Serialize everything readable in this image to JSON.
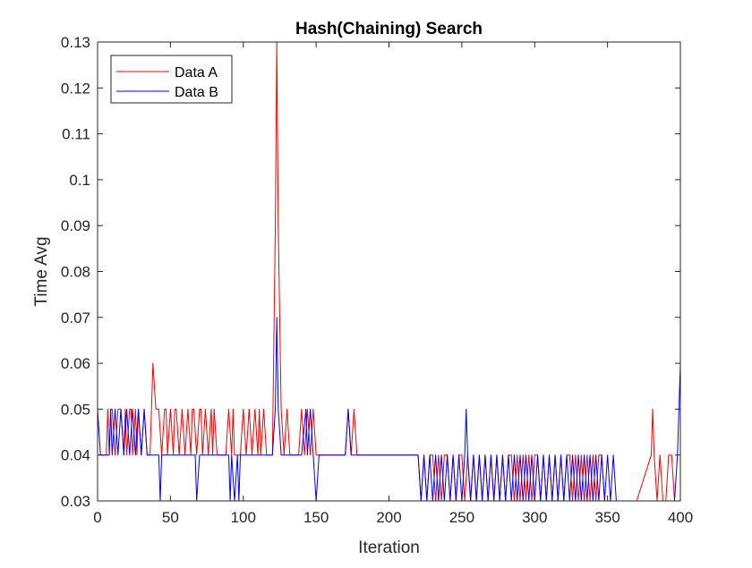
{
  "chart_data": {
    "type": "line",
    "title": "Hash(Chaining) Search",
    "xlabel": "Iteration",
    "ylabel": "Time Avg",
    "xlim": [
      0,
      400
    ],
    "ylim": [
      0.03,
      0.13
    ],
    "xticks": [
      0,
      50,
      100,
      150,
      200,
      250,
      300,
      350,
      400
    ],
    "yticks": [
      0.03,
      0.04,
      0.05,
      0.06,
      0.07,
      0.08,
      0.09,
      0.1,
      0.11,
      0.12,
      0.13
    ],
    "ytick_labels": [
      "0.03",
      "0.04",
      "0.05",
      "0.06",
      "0.07",
      "0.08",
      "0.09",
      "0.1",
      "0.11",
      "0.12",
      "0.13"
    ],
    "grid": false,
    "legend_position": "top-left",
    "colors": {
      "Data A": "#ff0000",
      "Data B": "#0000ff"
    },
    "series": [
      {
        "name": "Data A",
        "x": [
          0,
          6,
          7,
          8,
          9,
          10,
          12,
          14,
          16,
          18,
          19,
          20,
          22,
          23,
          24,
          26,
          27,
          28,
          30,
          32,
          34,
          36,
          37,
          38,
          40,
          42,
          44,
          46,
          47,
          48,
          50,
          52,
          53,
          54,
          56,
          58,
          60,
          62,
          64,
          65,
          66,
          68,
          70,
          71,
          72,
          74,
          76,
          78,
          79,
          80,
          82,
          84,
          86,
          88,
          90,
          92,
          93,
          94,
          96,
          98,
          100,
          102,
          104,
          106,
          108,
          110,
          111,
          112,
          114,
          116,
          118,
          120,
          122,
          123,
          124,
          126,
          128,
          130,
          132,
          134,
          136,
          138,
          140,
          142,
          144,
          146,
          148,
          150,
          160,
          170,
          172,
          174,
          176,
          178,
          180,
          182,
          184,
          186,
          188,
          190,
          192,
          194,
          196,
          200,
          210,
          220,
          222,
          224,
          226,
          228,
          230,
          232,
          234,
          236,
          238,
          240,
          242,
          244,
          246,
          248,
          250,
          252,
          254,
          256,
          258,
          260,
          262,
          264,
          266,
          268,
          270,
          272,
          274,
          276,
          278,
          280,
          282,
          284,
          286,
          288,
          290,
          292,
          294,
          296,
          298,
          300,
          302,
          304,
          306,
          308,
          310,
          312,
          314,
          316,
          318,
          320,
          322,
          324,
          326,
          328,
          330,
          332,
          334,
          336,
          338,
          340,
          342,
          344,
          346,
          348,
          350,
          360,
          370,
          380,
          381,
          382,
          384,
          386,
          388,
          390,
          392,
          394,
          396,
          398,
          400
        ],
        "y": [
          0.04,
          0.04,
          0.05,
          0.04,
          0.05,
          0.05,
          0.04,
          0.05,
          0.05,
          0.04,
          0.05,
          0.04,
          0.05,
          0.05,
          0.04,
          0.05,
          0.04,
          0.05,
          0.04,
          0.05,
          0.04,
          0.04,
          0.05,
          0.06,
          0.05,
          0.05,
          0.04,
          0.05,
          0.05,
          0.04,
          0.05,
          0.04,
          0.05,
          0.05,
          0.04,
          0.05,
          0.04,
          0.05,
          0.04,
          0.05,
          0.05,
          0.04,
          0.05,
          0.05,
          0.04,
          0.05,
          0.04,
          0.05,
          0.04,
          0.05,
          0.04,
          0.04,
          0.04,
          0.04,
          0.05,
          0.04,
          0.05,
          0.04,
          0.04,
          0.04,
          0.05,
          0.04,
          0.05,
          0.04,
          0.05,
          0.04,
          0.05,
          0.04,
          0.05,
          0.04,
          0.04,
          0.04,
          0.09,
          0.13,
          0.09,
          0.05,
          0.04,
          0.05,
          0.04,
          0.04,
          0.04,
          0.04,
          0.05,
          0.04,
          0.05,
          0.04,
          0.05,
          0.04,
          0.04,
          0.04,
          0.05,
          0.04,
          0.05,
          0.04,
          0.04,
          0.04,
          0.04,
          0.04,
          0.04,
          0.04,
          0.04,
          0.04,
          0.04,
          0.04,
          0.04,
          0.04,
          0.03,
          0.04,
          0.03,
          0.04,
          0.04,
          0.03,
          0.04,
          0.03,
          0.04,
          0.04,
          0.03,
          0.04,
          0.03,
          0.04,
          0.04,
          0.03,
          0.04,
          0.03,
          0.04,
          0.03,
          0.04,
          0.03,
          0.04,
          0.03,
          0.04,
          0.03,
          0.04,
          0.03,
          0.04,
          0.03,
          0.04,
          0.04,
          0.03,
          0.04,
          0.03,
          0.04,
          0.03,
          0.04,
          0.03,
          0.04,
          0.04,
          0.03,
          0.04,
          0.03,
          0.04,
          0.03,
          0.04,
          0.03,
          0.04,
          0.03,
          0.04,
          0.04,
          0.03,
          0.04,
          0.03,
          0.04,
          0.03,
          0.04,
          0.03,
          0.04,
          0.03,
          0.04,
          0.04,
          0.03,
          0.03,
          0.03,
          0.03,
          0.04,
          0.05,
          0.04,
          0.03,
          0.04,
          0.03,
          0.03,
          0.04,
          0.04,
          0.03,
          0.03,
          0.03
        ]
      },
      {
        "name": "Data B",
        "x": [
          0,
          2,
          4,
          6,
          8,
          9,
          10,
          12,
          14,
          16,
          18,
          20,
          22,
          24,
          26,
          28,
          30,
          32,
          34,
          36,
          38,
          40,
          42,
          43,
          44,
          46,
          48,
          50,
          60,
          67,
          68,
          70,
          80,
          90,
          91,
          92,
          94,
          96,
          97,
          98,
          100,
          110,
          120,
          122,
          123,
          124,
          126,
          128,
          130,
          140,
          143,
          144,
          146,
          148,
          150,
          152,
          154,
          160,
          170,
          172,
          174,
          180,
          190,
          200,
          210,
          218,
          220,
          222,
          224,
          226,
          228,
          230,
          232,
          234,
          236,
          238,
          240,
          242,
          244,
          246,
          248,
          250,
          252,
          253,
          254,
          256,
          258,
          260,
          262,
          264,
          266,
          268,
          270,
          272,
          274,
          276,
          278,
          280,
          282,
          284,
          286,
          288,
          290,
          292,
          294,
          296,
          298,
          300,
          302,
          304,
          306,
          308,
          310,
          312,
          314,
          316,
          318,
          320,
          322,
          324,
          326,
          328,
          330,
          332,
          334,
          336,
          338,
          340,
          342,
          344,
          346,
          348,
          350,
          352,
          354,
          356,
          358,
          360,
          370,
          380,
          390,
          396,
          398,
          400
        ],
        "y": [
          0.05,
          0.04,
          0.04,
          0.04,
          0.04,
          0.05,
          0.04,
          0.05,
          0.04,
          0.05,
          0.04,
          0.05,
          0.04,
          0.05,
          0.04,
          0.05,
          0.04,
          0.05,
          0.04,
          0.04,
          0.04,
          0.04,
          0.04,
          0.03,
          0.04,
          0.04,
          0.04,
          0.04,
          0.04,
          0.04,
          0.03,
          0.04,
          0.04,
          0.04,
          0.03,
          0.04,
          0.03,
          0.04,
          0.03,
          0.04,
          0.04,
          0.04,
          0.04,
          0.05,
          0.07,
          0.05,
          0.04,
          0.04,
          0.04,
          0.04,
          0.05,
          0.04,
          0.05,
          0.04,
          0.03,
          0.04,
          0.04,
          0.04,
          0.04,
          0.05,
          0.04,
          0.04,
          0.04,
          0.04,
          0.04,
          0.04,
          0.04,
          0.03,
          0.04,
          0.03,
          0.04,
          0.03,
          0.04,
          0.03,
          0.04,
          0.03,
          0.04,
          0.03,
          0.04,
          0.03,
          0.04,
          0.03,
          0.04,
          0.05,
          0.04,
          0.03,
          0.04,
          0.03,
          0.04,
          0.03,
          0.04,
          0.03,
          0.04,
          0.03,
          0.04,
          0.03,
          0.04,
          0.03,
          0.04,
          0.03,
          0.04,
          0.03,
          0.04,
          0.03,
          0.04,
          0.03,
          0.04,
          0.03,
          0.04,
          0.03,
          0.04,
          0.03,
          0.04,
          0.03,
          0.04,
          0.03,
          0.04,
          0.03,
          0.04,
          0.03,
          0.04,
          0.03,
          0.04,
          0.03,
          0.04,
          0.03,
          0.04,
          0.03,
          0.04,
          0.03,
          0.04,
          0.03,
          0.04,
          0.03,
          0.04,
          0.03,
          0.03,
          0.03,
          0.03,
          0.03,
          0.03,
          0.03,
          0.04,
          0.06
        ]
      }
    ]
  }
}
